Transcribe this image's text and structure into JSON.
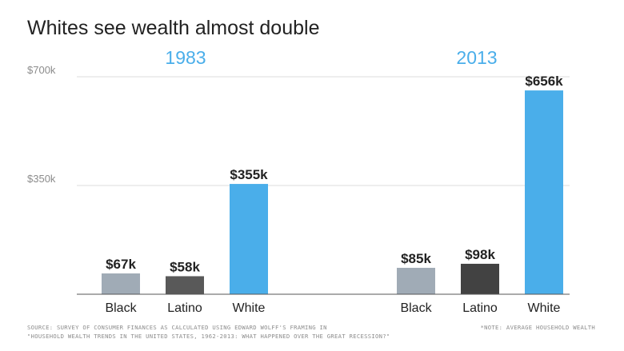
{
  "chart_data": {
    "type": "bar",
    "title": "Whites see wealth almost double",
    "groups": [
      "1983",
      "2013"
    ],
    "categories": [
      "Black",
      "Latino",
      "White"
    ],
    "series": [
      {
        "values": [
          67,
          58,
          355
        ],
        "labels": [
          "$67k",
          "$58k",
          "$355k"
        ]
      },
      {
        "values": [
          85,
          98,
          656
        ],
        "labels": [
          "$85k",
          "$98k",
          "$656k"
        ]
      }
    ],
    "yticks": [
      {
        "value": 350,
        "label": "$350k"
      },
      {
        "value": 700,
        "label": "$700k"
      }
    ],
    "ylim": [
      0,
      700
    ],
    "grid": true,
    "colors": {
      "Black": "#a0abb6",
      "Latino": "#595959",
      "Latino_2013": "#424242",
      "White": "#4aaeea",
      "group_title": "#4aaeea"
    }
  },
  "footer": {
    "source_line1": "SOURCE: SURVEY OF CONSUMER FINANCES AS CALCULATED USING EDWARD WOLFF'S FRAMING IN",
    "source_line2": "\"HOUSEHOLD WEALTH TRENDS IN THE UNITED STATES, 1962-2013: WHAT HAPPENED OVER THE GREAT RECESSION?\"",
    "note": "*NOTE: AVERAGE HOUSEHOLD WEALTH"
  }
}
